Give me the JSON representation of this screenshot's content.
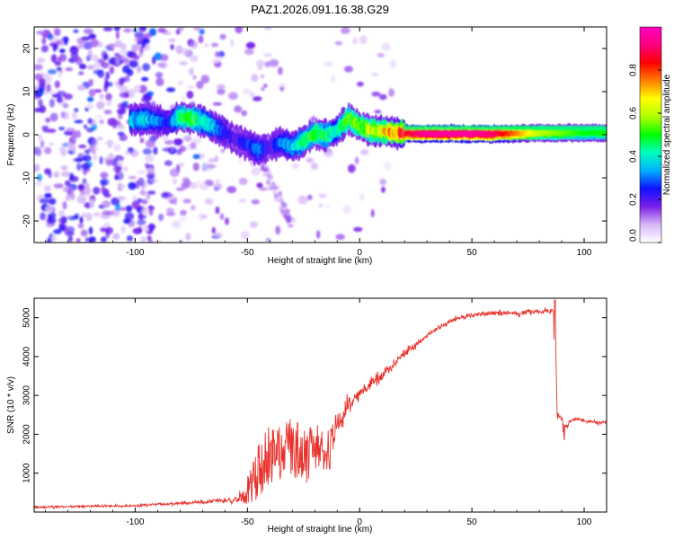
{
  "title": "PAZ1.2026.091.16.38.G29",
  "colors": {
    "snr_line": "#e8302a",
    "ridge_core": "#e8342c",
    "background": "#ffffff",
    "axis": "#000000"
  },
  "chart_data": [
    {
      "type": "heatmap",
      "name": "spectrogram",
      "xlabel": "Height of straight line (km)",
      "ylabel": "Frequency (Hz)",
      "xlim": [
        -145,
        110
      ],
      "ylim": [
        -25,
        25
      ],
      "xticks": [
        -100,
        -50,
        0,
        50,
        100
      ],
      "yticks": [
        -20,
        -10,
        0,
        10,
        20
      ],
      "colorbar": {
        "label": "Normalized spectral amplitude",
        "range": [
          0.0,
          1.0
        ],
        "ticks": [
          0.0,
          0.2,
          0.4,
          0.6,
          0.8
        ],
        "tick_labels": [
          "0.0",
          "0.2",
          "0.4",
          "0.6",
          "0.8"
        ],
        "colormap": [
          "#ffffff",
          "#d8b8f8",
          "#7a1fe8",
          "#1010ff",
          "#00b0ff",
          "#00ffc0",
          "#00ff00",
          "#b0ff00",
          "#ffff00",
          "#ff8000",
          "#ff0000",
          "#ff0080",
          "#ff00c0"
        ]
      },
      "ridge": {
        "x": [
          -100,
          -95,
          -90,
          -85,
          -80,
          -75,
          -70,
          -65,
          -60,
          -55,
          -50,
          -45,
          -40,
          -35,
          -30,
          -25,
          -20,
          -15,
          -10,
          -5,
          0,
          5,
          10,
          15,
          20,
          30,
          40,
          50,
          60,
          70,
          80,
          90,
          100,
          110
        ],
        "frequency": [
          3.5,
          3.6,
          3.2,
          2.8,
          4.2,
          3.8,
          3.2,
          1.8,
          0.5,
          -1.2,
          -2.2,
          -3.6,
          -2.8,
          -1.8,
          -2.8,
          -1.5,
          0.3,
          -0.2,
          1.0,
          3.8,
          2.0,
          1.0,
          0.8,
          0.5,
          0.3,
          0.2,
          0.2,
          0.2,
          0.2,
          0.3,
          0.4,
          0.4,
          0.4,
          0.4
        ],
        "amplitude": [
          0.35,
          0.35,
          0.3,
          0.25,
          0.45,
          0.5,
          0.4,
          0.35,
          0.25,
          0.2,
          0.25,
          0.3,
          0.2,
          0.3,
          0.35,
          0.45,
          0.5,
          0.45,
          0.4,
          0.55,
          0.55,
          0.6,
          0.65,
          0.7,
          0.85,
          0.95,
          0.95,
          0.95,
          0.9,
          0.75,
          0.6,
          0.55,
          0.5,
          0.5
        ]
      },
      "noise_region": {
        "x_range": [
          -145,
          -40
        ],
        "frequency_range": [
          -25,
          25
        ],
        "amplitude_range": [
          0.05,
          0.25
        ]
      }
    },
    {
      "type": "line",
      "name": "snr",
      "xlabel": "Height of straight line (km)",
      "ylabel": "SNR (10 * v/v)",
      "xlim": [
        -145,
        110
      ],
      "ylim": [
        0,
        5500
      ],
      "xticks": [
        -100,
        -50,
        0,
        50,
        100
      ],
      "yticks": [
        1000,
        2000,
        3000,
        4000,
        5000
      ],
      "series": [
        {
          "name": "SNR",
          "x": [
            -145,
            -120,
            -100,
            -90,
            -80,
            -70,
            -60,
            -55,
            -50,
            -45,
            -40,
            -35,
            -30,
            -25,
            -20,
            -15,
            -12,
            -10,
            -5,
            0,
            5,
            10,
            15,
            20,
            25,
            30,
            35,
            40,
            45,
            50,
            55,
            60,
            65,
            70,
            75,
            80,
            85,
            87,
            88,
            90,
            92,
            95,
            100,
            105,
            110
          ],
          "y": [
            120,
            150,
            160,
            200,
            220,
            260,
            300,
            320,
            400,
            1100,
            1450,
            1500,
            1650,
            1400,
            1600,
            1550,
            1700,
            2300,
            2700,
            3050,
            3300,
            3500,
            3800,
            4100,
            4300,
            4550,
            4750,
            4900,
            5000,
            5050,
            5100,
            5100,
            5130,
            5100,
            5150,
            5150,
            5180,
            5180,
            2500,
            2400,
            2200,
            2400,
            2350,
            2300,
            2300
          ],
          "noise_amplitude": [
            60,
            60,
            60,
            70,
            70,
            80,
            110,
            150,
            500,
            700,
            800,
            700,
            900,
            700,
            700,
            500,
            600,
            500,
            400,
            300,
            300,
            250,
            200,
            200,
            150,
            130,
            120,
            120,
            120,
            120,
            120,
            120,
            120,
            120,
            120,
            120,
            140,
            140,
            120,
            120,
            120,
            80,
            80,
            80,
            80
          ]
        }
      ]
    }
  ]
}
